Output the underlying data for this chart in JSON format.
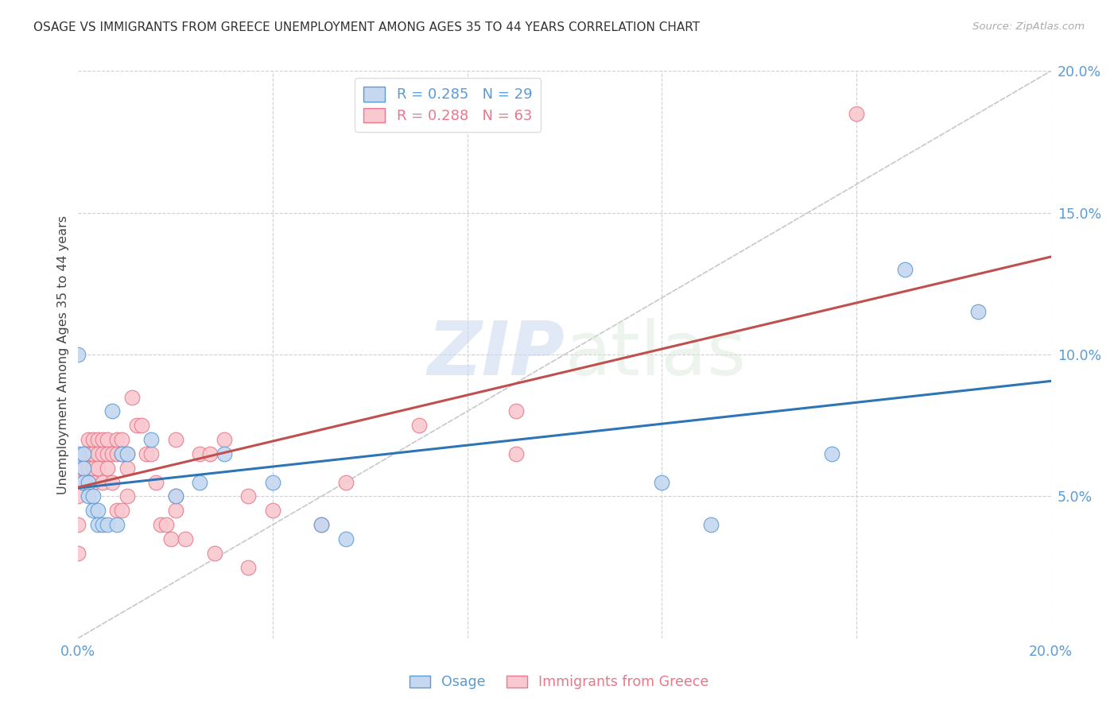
{
  "title": "OSAGE VS IMMIGRANTS FROM GREECE UNEMPLOYMENT AMONG AGES 35 TO 44 YEARS CORRELATION CHART",
  "source": "Source: ZipAtlas.com",
  "ylabel": "Unemployment Among Ages 35 to 44 years",
  "xlim": [
    0.0,
    0.2
  ],
  "ylim": [
    0.0,
    0.2
  ],
  "background_color": "#ffffff",
  "grid_color": "#d0d0d0",
  "watermark_zip": "ZIP",
  "watermark_atlas": "atlas",
  "osage_color": "#c5d8f0",
  "osage_edge_color": "#5b9bd5",
  "greece_color": "#f9c8d0",
  "greece_edge_color": "#e8788a",
  "osage_R": 0.285,
  "osage_N": 29,
  "greece_R": 0.288,
  "greece_N": 63,
  "osage_line_color": "#2e75b6",
  "greece_line_color": "#c0504d",
  "diagonal_color": "#c8c8c8",
  "osage_x": [
    0.0,
    0.0,
    0.001,
    0.001,
    0.001,
    0.002,
    0.002,
    0.003,
    0.003,
    0.004,
    0.004,
    0.005,
    0.006,
    0.007,
    0.008,
    0.009,
    0.01,
    0.015,
    0.02,
    0.025,
    0.03,
    0.04,
    0.05,
    0.055,
    0.12,
    0.13,
    0.155,
    0.17,
    0.185
  ],
  "osage_y": [
    0.065,
    0.1,
    0.065,
    0.06,
    0.055,
    0.055,
    0.05,
    0.05,
    0.045,
    0.045,
    0.04,
    0.04,
    0.04,
    0.08,
    0.04,
    0.065,
    0.065,
    0.07,
    0.05,
    0.055,
    0.065,
    0.055,
    0.04,
    0.035,
    0.055,
    0.04,
    0.065,
    0.13,
    0.115
  ],
  "greece_x": [
    0.0,
    0.0,
    0.0,
    0.0,
    0.001,
    0.001,
    0.001,
    0.001,
    0.002,
    0.002,
    0.002,
    0.002,
    0.002,
    0.003,
    0.003,
    0.003,
    0.003,
    0.004,
    0.004,
    0.004,
    0.005,
    0.005,
    0.005,
    0.006,
    0.006,
    0.006,
    0.007,
    0.007,
    0.008,
    0.008,
    0.008,
    0.009,
    0.009,
    0.009,
    0.01,
    0.01,
    0.01,
    0.011,
    0.012,
    0.013,
    0.014,
    0.015,
    0.016,
    0.017,
    0.018,
    0.019,
    0.02,
    0.02,
    0.02,
    0.022,
    0.025,
    0.027,
    0.028,
    0.03,
    0.035,
    0.035,
    0.04,
    0.05,
    0.055,
    0.07,
    0.09,
    0.09,
    0.16
  ],
  "greece_y": [
    0.055,
    0.05,
    0.04,
    0.03,
    0.065,
    0.065,
    0.06,
    0.055,
    0.07,
    0.065,
    0.065,
    0.06,
    0.055,
    0.07,
    0.065,
    0.06,
    0.055,
    0.07,
    0.065,
    0.06,
    0.07,
    0.065,
    0.055,
    0.07,
    0.065,
    0.06,
    0.065,
    0.055,
    0.07,
    0.065,
    0.045,
    0.07,
    0.065,
    0.045,
    0.065,
    0.06,
    0.05,
    0.085,
    0.075,
    0.075,
    0.065,
    0.065,
    0.055,
    0.04,
    0.04,
    0.035,
    0.07,
    0.05,
    0.045,
    0.035,
    0.065,
    0.065,
    0.03,
    0.07,
    0.05,
    0.025,
    0.045,
    0.04,
    0.055,
    0.075,
    0.065,
    0.08,
    0.185
  ]
}
